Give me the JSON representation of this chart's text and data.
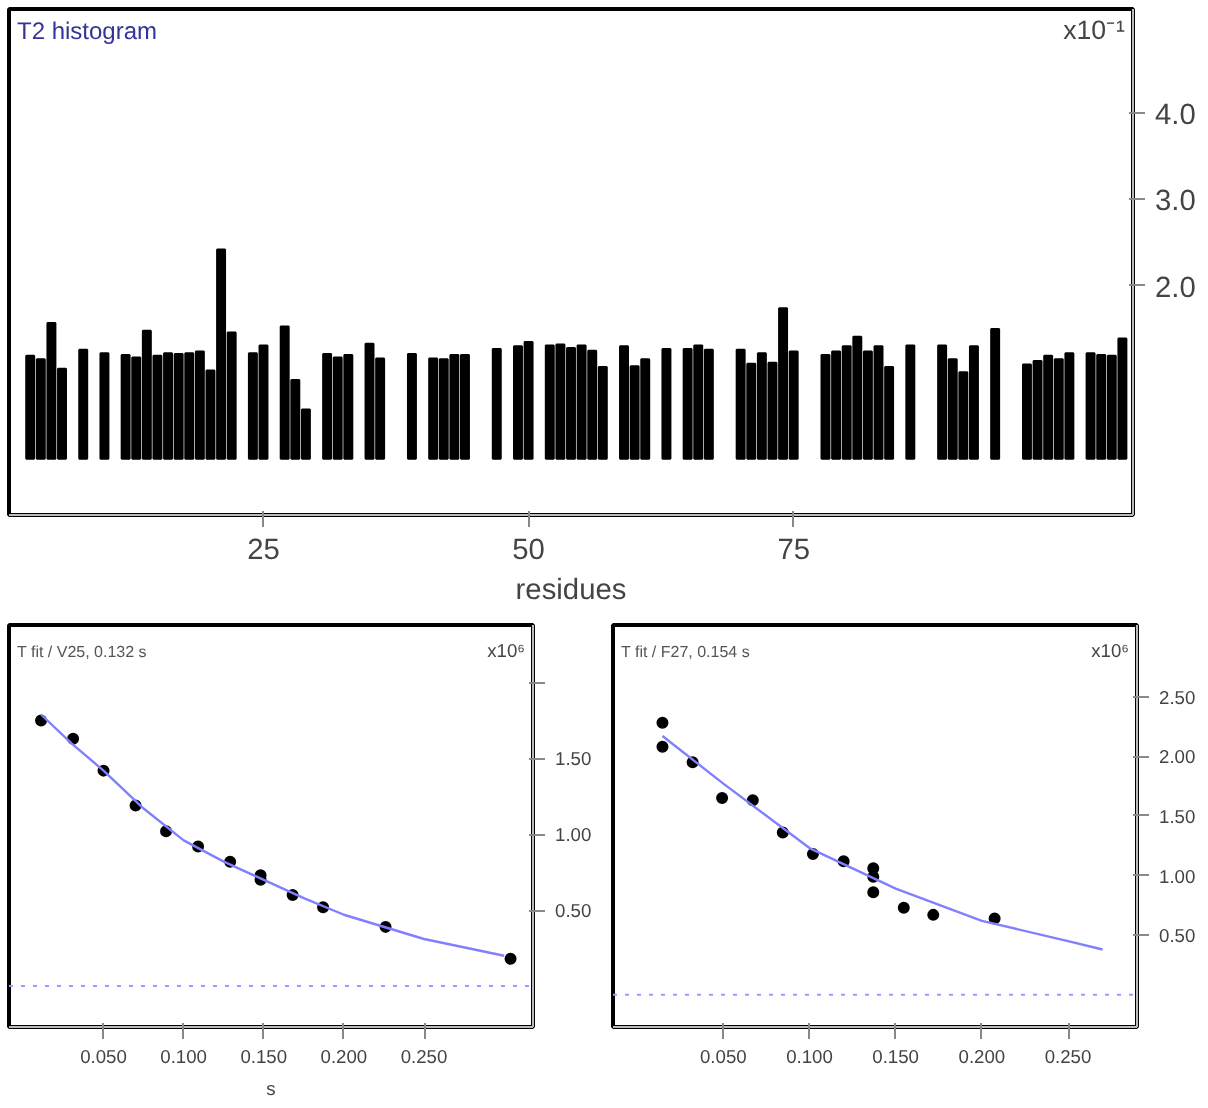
{
  "chart_data": [
    {
      "type": "bar",
      "title": "T2 histogram",
      "xlabel": "residues",
      "ylabel": "x10⁻¹",
      "color": "#000000",
      "x": [
        3,
        4,
        5,
        6,
        8,
        10,
        12,
        13,
        14,
        15,
        16,
        17,
        18,
        19,
        20,
        21,
        22,
        24,
        25,
        27,
        28,
        29,
        31,
        32,
        33,
        35,
        36,
        39,
        41,
        42,
        43,
        44,
        47,
        49,
        50,
        52,
        53,
        54,
        55,
        56,
        57,
        59,
        60,
        61,
        63,
        65,
        66,
        67,
        70,
        71,
        72,
        73,
        74,
        75,
        78,
        79,
        80,
        81,
        82,
        83,
        84,
        86,
        89,
        90,
        91,
        92,
        94,
        97,
        98,
        99,
        100,
        101,
        103,
        104,
        105,
        106
      ],
      "values": [
        1.19,
        1.15,
        1.57,
        1.04,
        1.26,
        1.22,
        1.2,
        1.17,
        1.48,
        1.19,
        1.22,
        1.21,
        1.22,
        1.24,
        1.02,
        2.42,
        1.46,
        1.22,
        1.31,
        1.53,
        0.91,
        0.57,
        1.21,
        1.17,
        1.2,
        1.33,
        1.16,
        1.21,
        1.16,
        1.15,
        1.2,
        1.2,
        1.27,
        1.3,
        1.35,
        1.31,
        1.32,
        1.28,
        1.31,
        1.25,
        1.06,
        1.3,
        1.07,
        1.15,
        1.27,
        1.27,
        1.31,
        1.26,
        1.26,
        1.1,
        1.22,
        1.11,
        1.74,
        1.24,
        1.2,
        1.24,
        1.3,
        1.41,
        1.24,
        1.3,
        1.06,
        1.31,
        1.31,
        1.15,
        1.0,
        1.3,
        1.5,
        1.09,
        1.13,
        1.19,
        1.15,
        1.22,
        1.22,
        1.2,
        1.19,
        1.39
      ],
      "xlim": [
        1,
        107
      ],
      "ylim": [
        -0.65,
        5.2
      ],
      "xticks": [
        25,
        50,
        75
      ],
      "yticks": [
        {
          "value": 2,
          "label": "2.0"
        },
        {
          "value": 3,
          "label": "3.0"
        },
        {
          "value": 4,
          "label": "4.0"
        }
      ],
      "grid": false
    },
    {
      "type": "scatter",
      "title": "T fit / V25, 0.132 s",
      "xlabel": "s",
      "ylabel": "x10⁶",
      "grid": false,
      "series": [
        {
          "type": "scatter",
          "marker": "circle",
          "color": "#000000",
          "x": [
            0.011,
            0.031,
            0.05,
            0.07,
            0.089,
            0.109,
            0.129,
            0.148,
            0.148,
            0.168,
            0.187,
            0.226,
            0.304
          ],
          "values": [
            1.75,
            1.63,
            1.42,
            1.19,
            1.02,
            0.92,
            0.82,
            0.73,
            0.7,
            0.6,
            0.52,
            0.39,
            0.18
          ]
        },
        {
          "type": "line",
          "color": "#8080ff",
          "x": [
            0.011,
            0.03,
            0.05,
            0.075,
            0.1,
            0.125,
            0.15,
            0.175,
            0.2,
            0.25,
            0.3
          ],
          "values": [
            1.79,
            1.6,
            1.42,
            1.17,
            0.96,
            0.82,
            0.7,
            0.58,
            0.47,
            0.31,
            0.2
          ]
        }
      ],
      "ref_lines": [
        {
          "axis": "y",
          "value": 0,
          "color": "#9999ff",
          "line_style": "dotted"
        }
      ],
      "xlim": [
        -0.009,
        0.318
      ],
      "ylim": [
        -0.27,
        2.38
      ],
      "xticks": [
        {
          "value": 0.05,
          "label": "0.050"
        },
        {
          "value": 0.1,
          "label": "0.100"
        },
        {
          "value": 0.15,
          "label": "0.150"
        },
        {
          "value": 0.2,
          "label": "0.200"
        },
        {
          "value": 0.25,
          "label": "0.250"
        }
      ],
      "yticks": [
        {
          "value": 0.5,
          "label": "0.50"
        },
        {
          "value": 1.0,
          "label": "1.00"
        },
        {
          "value": 1.5,
          "label": "1.50"
        },
        {
          "value": 2.0,
          "label": null
        }
      ]
    },
    {
      "type": "scatter",
      "title": "T fit / F27, 0.154 s",
      "ylabel": "x10⁶",
      "grid": false,
      "series": [
        {
          "type": "scatter",
          "marker": "circle",
          "color": "#000000",
          "x": [
            0.0147,
            0.0147,
            0.0322,
            0.0493,
            0.0671,
            0.0845,
            0.102,
            0.1198,
            0.137,
            0.137,
            0.137,
            0.1547,
            0.1718,
            0.2074
          ],
          "values": [
            2.28,
            2.08,
            1.95,
            1.65,
            1.63,
            1.36,
            1.18,
            1.12,
            1.06,
            0.99,
            0.86,
            0.73,
            0.67,
            0.64
          ]
        },
        {
          "type": "line",
          "color": "#8080ff",
          "x": [
            0.0147,
            0.05,
            0.1,
            0.15,
            0.2,
            0.25,
            0.27
          ],
          "values": [
            2.17,
            1.77,
            1.23,
            0.89,
            0.62,
            0.45,
            0.38
          ]
        }
      ],
      "ref_lines": [
        {
          "axis": "y",
          "value": 0,
          "color": "#9999ff",
          "line_style": "dotted"
        }
      ],
      "xlim": [
        -0.014,
        0.29
      ],
      "ylim": [
        -0.27,
        3.1
      ],
      "xticks": [
        {
          "value": 0.05,
          "label": "0.050"
        },
        {
          "value": 0.1,
          "label": "0.100"
        },
        {
          "value": 0.15,
          "label": "0.150"
        },
        {
          "value": 0.2,
          "label": "0.200"
        },
        {
          "value": 0.25,
          "label": "0.250"
        }
      ],
      "yticks": [
        {
          "value": 0.5,
          "label": "0.50"
        },
        {
          "value": 1.0,
          "label": "1.00"
        },
        {
          "value": 1.5,
          "label": "1.50"
        },
        {
          "value": 2.0,
          "label": "2.00"
        },
        {
          "value": 2.5,
          "label": "2.50"
        }
      ]
    }
  ]
}
